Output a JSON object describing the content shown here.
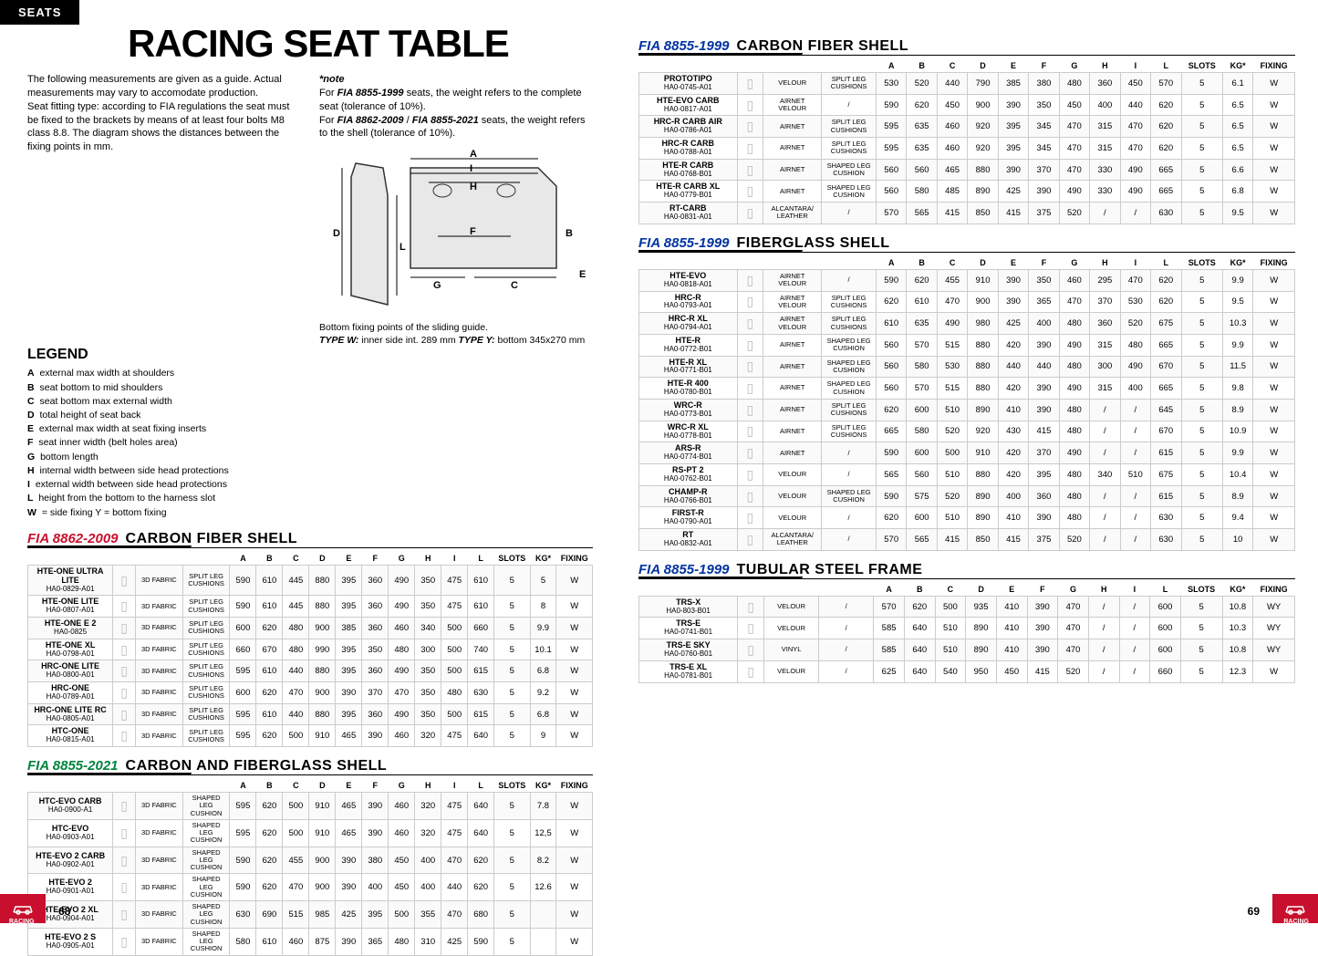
{
  "tab": "SEATS",
  "title": "RACING SEAT TABLE",
  "intro": "The following measurements are given as a guide. Actual measurements may vary to accomodate production.\nSeat fitting type: according to FIA regulations the seat must be fixed to the brackets by means of at least four bolts M8 class 8.8. The diagram shows the distances between the fixing points in mm.",
  "note_title": "*note",
  "note_text": "For FIA 8855-1999 seats, the weight refers to the complete seat (tolerance of 10%).\nFor FIA 8862-2009 / FIA 8855-2021 seats, the weight refers to the shell (tolerance of 10%).",
  "diagram_labels": {
    "A": "A",
    "B": "B",
    "C": "C",
    "D": "D",
    "E": "E",
    "F": "F",
    "G": "G",
    "H": "H",
    "I": "I",
    "L": "L"
  },
  "diagram_caption": "Bottom fixing points of the sliding guide.\nTYPE W: inner side int. 289 mm TYPE Y: bottom 345x270 mm",
  "legend_title": "LEGEND",
  "legend": [
    [
      "A",
      "external max width at shoulders"
    ],
    [
      "B",
      "seat bottom to mid shoulders"
    ],
    [
      "C",
      "seat bottom max external width"
    ],
    [
      "D",
      "total height of seat back"
    ],
    [
      "E",
      "external max width at seat fixing inserts"
    ],
    [
      "F",
      "seat inner width (belt holes area)"
    ],
    [
      "G",
      "bottom length"
    ],
    [
      "H",
      "internal width between side head protections"
    ],
    [
      "I",
      "external width between side head protections"
    ],
    [
      "L",
      "height from the bottom to the harness slot"
    ],
    [
      "W",
      "= side fixing    Y = bottom fixing"
    ]
  ],
  "headers": [
    "A",
    "B",
    "C",
    "D",
    "E",
    "F",
    "G",
    "H",
    "I",
    "L",
    "SLOTS",
    "KG*",
    "FIXING"
  ],
  "sections": [
    {
      "col": "left",
      "fia": "FIA 8862-2009",
      "fia_class": "fia-red",
      "shell": "CARBON FIBER SHELL",
      "rows": [
        {
          "n": "HTE-ONE ULTRA LITE",
          "c": "HA0-0829-A01",
          "m1": "3D FABRIC",
          "m2": "SPLIT LEG CUSHIONS",
          "v": [
            "590",
            "610",
            "445",
            "880",
            "395",
            "360",
            "490",
            "350",
            "475",
            "610",
            "5",
            "5",
            "W"
          ]
        },
        {
          "n": "HTE-ONE LITE",
          "c": "HA0-0807-A01",
          "m1": "3D FABRIC",
          "m2": "SPLIT LEG CUSHIONS",
          "v": [
            "590",
            "610",
            "445",
            "880",
            "395",
            "360",
            "490",
            "350",
            "475",
            "610",
            "5",
            "8",
            "W"
          ]
        },
        {
          "n": "HTE-ONE E 2",
          "c": "HA0-0825",
          "m1": "3D FABRIC",
          "m2": "SPLIT LEG CUSHIONS",
          "v": [
            "600",
            "620",
            "480",
            "900",
            "385",
            "360",
            "460",
            "340",
            "500",
            "660",
            "5",
            "9.9",
            "W"
          ]
        },
        {
          "n": "HTE-ONE XL",
          "c": "HA0-0798-A01",
          "m1": "3D FABRIC",
          "m2": "SPLIT LEG CUSHIONS",
          "v": [
            "660",
            "670",
            "480",
            "990",
            "395",
            "350",
            "480",
            "300",
            "500",
            "740",
            "5",
            "10.1",
            "W"
          ]
        },
        {
          "n": "HRC-ONE LITE",
          "c": "HA0-0800-A01",
          "m1": "3D FABRIC",
          "m2": "SPLIT LEG CUSHIONS",
          "v": [
            "595",
            "610",
            "440",
            "880",
            "395",
            "360",
            "490",
            "350",
            "500",
            "615",
            "5",
            "6.8",
            "W"
          ]
        },
        {
          "n": "HRC-ONE",
          "c": "HA0-0789-A01",
          "m1": "3D FABRIC",
          "m2": "SPLIT LEG CUSHIONS",
          "v": [
            "600",
            "620",
            "470",
            "900",
            "390",
            "370",
            "470",
            "350",
            "480",
            "630",
            "5",
            "9.2",
            "W"
          ]
        },
        {
          "n": "HRC-ONE LITE RC",
          "c": "HA0-0805-A01",
          "m1": "3D FABRIC",
          "m2": "SPLIT LEG CUSHIONS",
          "v": [
            "595",
            "610",
            "440",
            "880",
            "395",
            "360",
            "490",
            "350",
            "500",
            "615",
            "5",
            "6.8",
            "W"
          ]
        },
        {
          "n": "HTC-ONE",
          "c": "HA0-0815-A01",
          "m1": "3D FABRIC",
          "m2": "SPLIT LEG CUSHIONS",
          "v": [
            "595",
            "620",
            "500",
            "910",
            "465",
            "390",
            "460",
            "320",
            "475",
            "640",
            "5",
            "9",
            "W"
          ]
        }
      ]
    },
    {
      "col": "left",
      "fia": "FIA 8855-2021",
      "fia_class": "fia-green",
      "shell": "CARBON AND FIBERGLASS SHELL",
      "rows": [
        {
          "n": "HTC-EVO CARB",
          "c": "HA0-0900-A1",
          "m1": "3D FABRIC",
          "m2": "SHAPED LEG CUSHION",
          "v": [
            "595",
            "620",
            "500",
            "910",
            "465",
            "390",
            "460",
            "320",
            "475",
            "640",
            "5",
            "7.8",
            "W"
          ]
        },
        {
          "n": "HTC-EVO",
          "c": "HA0-0903-A01",
          "m1": "3D FABRIC",
          "m2": "SHAPED LEG CUSHION",
          "v": [
            "595",
            "620",
            "500",
            "910",
            "465",
            "390",
            "460",
            "320",
            "475",
            "640",
            "5",
            "12,5",
            "W"
          ]
        },
        {
          "n": "HTE-EVO 2 CARB",
          "c": "HA0-0902-A01",
          "m1": "3D FABRIC",
          "m2": "SHAPED LEG CUSHION",
          "v": [
            "590",
            "620",
            "455",
            "900",
            "390",
            "380",
            "450",
            "400",
            "470",
            "620",
            "5",
            "8.2",
            "W"
          ]
        },
        {
          "n": "HTE-EVO 2",
          "c": "HA0-0901-A01",
          "m1": "3D FABRIC",
          "m2": "SHAPED LEG CUSHION",
          "v": [
            "590",
            "620",
            "470",
            "900",
            "390",
            "400",
            "450",
            "400",
            "440",
            "620",
            "5",
            "12.6",
            "W"
          ]
        },
        {
          "n": "HTE-EVO 2 XL",
          "c": "HA0-0904-A01",
          "m1": "3D FABRIC",
          "m2": "SHAPED LEG CUSHION",
          "v": [
            "630",
            "690",
            "515",
            "985",
            "425",
            "395",
            "500",
            "355",
            "470",
            "680",
            "5",
            "",
            "W"
          ]
        },
        {
          "n": "HTE-EVO 2 S",
          "c": "HA0-0905-A01",
          "m1": "3D FABRIC",
          "m2": "SHAPED LEG CUSHION",
          "v": [
            "580",
            "610",
            "460",
            "875",
            "390",
            "365",
            "480",
            "310",
            "425",
            "590",
            "5",
            "",
            "W"
          ]
        }
      ]
    },
    {
      "col": "right",
      "fia": "FIA 8855-1999",
      "fia_class": "fia-blue",
      "shell": "CARBON FIBER SHELL",
      "rows": [
        {
          "n": "PROTOTIPO",
          "c": "HA0-0745-A01",
          "m1": "VELOUR",
          "m2": "SPLIT LEG CUSHIONS",
          "v": [
            "530",
            "520",
            "440",
            "790",
            "385",
            "380",
            "480",
            "360",
            "450",
            "570",
            "5",
            "6.1",
            "W"
          ]
        },
        {
          "n": "HTE-EVO CARB",
          "c": "HA0-0817-A01",
          "m1": "AIRNET VELOUR",
          "m2": "/",
          "v": [
            "590",
            "620",
            "450",
            "900",
            "390",
            "350",
            "450",
            "400",
            "440",
            "620",
            "5",
            "6.5",
            "W"
          ]
        },
        {
          "n": "HRC-R CARB AIR",
          "c": "HA0-0786-A01",
          "m1": "AIRNET",
          "m2": "SPLIT LEG CUSHIONS",
          "v": [
            "595",
            "635",
            "460",
            "920",
            "395",
            "345",
            "470",
            "315",
            "470",
            "620",
            "5",
            "6.5",
            "W"
          ]
        },
        {
          "n": "HRC-R CARB",
          "c": "HA0-0788-A01",
          "m1": "AIRNET",
          "m2": "SPLIT LEG CUSHIONS",
          "v": [
            "595",
            "635",
            "460",
            "920",
            "395",
            "345",
            "470",
            "315",
            "470",
            "620",
            "5",
            "6.5",
            "W"
          ]
        },
        {
          "n": "HTE-R CARB",
          "c": "HA0-0768-B01",
          "m1": "AIRNET",
          "m2": "SHAPED LEG CUSHION",
          "v": [
            "560",
            "560",
            "465",
            "880",
            "390",
            "370",
            "470",
            "330",
            "490",
            "665",
            "5",
            "6.6",
            "W"
          ]
        },
        {
          "n": "HTE-R CARB XL",
          "c": "HA0-0779-B01",
          "m1": "AIRNET",
          "m2": "SHAPED LEG CUSHION",
          "v": [
            "560",
            "580",
            "485",
            "890",
            "425",
            "390",
            "490",
            "330",
            "490",
            "665",
            "5",
            "6.8",
            "W"
          ]
        },
        {
          "n": "RT-CARB",
          "c": "HA0-0831-A01",
          "m1": "ALCANTARA/ LEATHER",
          "m2": "/",
          "v": [
            "570",
            "565",
            "415",
            "850",
            "415",
            "375",
            "520",
            "/",
            "/",
            "630",
            "5",
            "9.5",
            "W"
          ]
        }
      ]
    },
    {
      "col": "right",
      "fia": "FIA 8855-1999",
      "fia_class": "fia-blue",
      "shell": "FIBERGLASS SHELL",
      "rows": [
        {
          "n": "HTE-EVO",
          "c": "HA0-0818-A01",
          "m1": "AIRNET VELOUR",
          "m2": "/",
          "v": [
            "590",
            "620",
            "455",
            "910",
            "390",
            "350",
            "460",
            "295",
            "470",
            "620",
            "5",
            "9.9",
            "W"
          ]
        },
        {
          "n": "HRC-R",
          "c": "HA0-0793-A01",
          "m1": "AIRNET VELOUR",
          "m2": "SPLIT LEG CUSHIONS",
          "v": [
            "620",
            "610",
            "470",
            "900",
            "390",
            "365",
            "470",
            "370",
            "530",
            "620",
            "5",
            "9.5",
            "W"
          ]
        },
        {
          "n": "HRC-R XL",
          "c": "HA0-0794-A01",
          "m1": "AIRNET VELOUR",
          "m2": "SPLIT LEG CUSHIONS",
          "v": [
            "610",
            "635",
            "490",
            "980",
            "425",
            "400",
            "480",
            "360",
            "520",
            "675",
            "5",
            "10.3",
            "W"
          ]
        },
        {
          "n": "HTE-R",
          "c": "HA0-0772-B01",
          "m1": "AIRNET",
          "m2": "SHAPED LEG CUSHION",
          "v": [
            "560",
            "570",
            "515",
            "880",
            "420",
            "390",
            "490",
            "315",
            "480",
            "665",
            "5",
            "9.9",
            "W"
          ]
        },
        {
          "n": "HTE-R XL",
          "c": "HA0-0771-B01",
          "m1": "AIRNET",
          "m2": "SHAPED LEG CUSHION",
          "v": [
            "560",
            "580",
            "530",
            "880",
            "440",
            "440",
            "480",
            "300",
            "490",
            "670",
            "5",
            "11.5",
            "W"
          ]
        },
        {
          "n": "HTE-R 400",
          "c": "HA0-0780-B01",
          "m1": "AIRNET",
          "m2": "SHAPED LEG CUSHION",
          "v": [
            "560",
            "570",
            "515",
            "880",
            "420",
            "390",
            "490",
            "315",
            "400",
            "665",
            "5",
            "9.8",
            "W"
          ]
        },
        {
          "n": "WRC-R",
          "c": "HA0-0773-B01",
          "m1": "AIRNET",
          "m2": "SPLIT LEG CUSHIONS",
          "v": [
            "620",
            "600",
            "510",
            "890",
            "410",
            "390",
            "480",
            "/",
            "/",
            "645",
            "5",
            "8.9",
            "W"
          ]
        },
        {
          "n": "WRC-R XL",
          "c": "HA0-0778-B01",
          "m1": "AIRNET",
          "m2": "SPLIT LEG CUSHIONS",
          "v": [
            "665",
            "580",
            "520",
            "920",
            "430",
            "415",
            "480",
            "/",
            "/",
            "670",
            "5",
            "10.9",
            "W"
          ]
        },
        {
          "n": "ARS-R",
          "c": "HA0-0774-B01",
          "m1": "AIRNET",
          "m2": "/",
          "v": [
            "590",
            "600",
            "500",
            "910",
            "420",
            "370",
            "490",
            "/",
            "/",
            "615",
            "5",
            "9.9",
            "W"
          ]
        },
        {
          "n": "RS-PT 2",
          "c": "HA0-0762-B01",
          "m1": "VELOUR",
          "m2": "/",
          "v": [
            "565",
            "560",
            "510",
            "880",
            "420",
            "395",
            "480",
            "340",
            "510",
            "675",
            "5",
            "10.4",
            "W"
          ]
        },
        {
          "n": "CHAMP-R",
          "c": "HA0-0766-B01",
          "m1": "VELOUR",
          "m2": "SHAPED LEG CUSHION",
          "v": [
            "590",
            "575",
            "520",
            "890",
            "400",
            "360",
            "480",
            "/",
            "/",
            "615",
            "5",
            "8.9",
            "W"
          ]
        },
        {
          "n": "FIRST-R",
          "c": "HA0-0790-A01",
          "m1": "VELOUR",
          "m2": "/",
          "v": [
            "620",
            "600",
            "510",
            "890",
            "410",
            "390",
            "480",
            "/",
            "/",
            "630",
            "5",
            "9.4",
            "W"
          ]
        },
        {
          "n": "RT",
          "c": "HA0-0832-A01",
          "m1": "ALCANTARA/ LEATHER",
          "m2": "/",
          "v": [
            "570",
            "565",
            "415",
            "850",
            "415",
            "375",
            "520",
            "/",
            "/",
            "630",
            "5",
            "10",
            "W"
          ]
        }
      ]
    },
    {
      "col": "right",
      "fia": "FIA 8855-1999",
      "fia_class": "fia-blue",
      "shell": "TUBULAR STEEL FRAME",
      "rows": [
        {
          "n": "TRS-X",
          "c": "HA0-803-B01",
          "m1": "VELOUR",
          "m2": "/",
          "v": [
            "570",
            "620",
            "500",
            "935",
            "410",
            "390",
            "470",
            "/",
            "/",
            "600",
            "5",
            "10.8",
            "WY"
          ]
        },
        {
          "n": "TRS-E",
          "c": "HA0-0741-B01",
          "m1": "VELOUR",
          "m2": "/",
          "v": [
            "585",
            "640",
            "510",
            "890",
            "410",
            "390",
            "470",
            "/",
            "/",
            "600",
            "5",
            "10.3",
            "WY"
          ]
        },
        {
          "n": "TRS-E SKY",
          "c": "HA0-0760-B01",
          "m1": "VINYL",
          "m2": "/",
          "v": [
            "585",
            "640",
            "510",
            "890",
            "410",
            "390",
            "470",
            "/",
            "/",
            "600",
            "5",
            "10.8",
            "WY"
          ]
        },
        {
          "n": "TRS-E XL",
          "c": "HA0-0781-B01",
          "m1": "VELOUR",
          "m2": "/",
          "v": [
            "625",
            "640",
            "540",
            "950",
            "450",
            "415",
            "520",
            "/",
            "/",
            "660",
            "5",
            "12.3",
            "W"
          ]
        }
      ]
    }
  ],
  "footer": {
    "racing": "RACING",
    "page_l": "68",
    "page_r": "69"
  }
}
